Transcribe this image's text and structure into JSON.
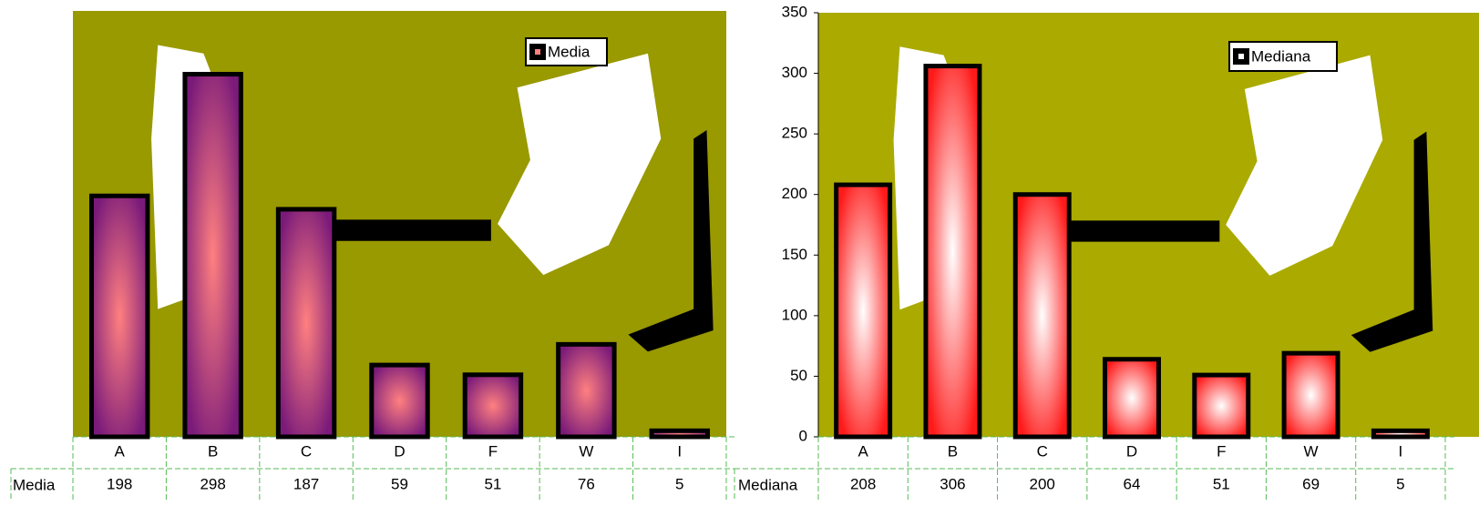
{
  "chart_data": [
    {
      "type": "bar",
      "categories": [
        "A",
        "B",
        "C",
        "D",
        "F",
        "W",
        "I"
      ],
      "series": [
        {
          "name": "Media",
          "color": "#7a1a7a",
          "center_color": "#ff8080",
          "values": [
            198,
            298,
            187,
            59,
            51,
            76,
            5
          ]
        }
      ],
      "ylim": [
        0,
        350
      ],
      "legend": "top-right",
      "background": "#999900"
    },
    {
      "type": "bar",
      "categories": [
        "A",
        "B",
        "C",
        "D",
        "F",
        "W",
        "I"
      ],
      "series": [
        {
          "name": "Mediana",
          "color": "#ff1a1a",
          "center_color": "#ffffff",
          "values": [
            208,
            306,
            200,
            64,
            51,
            69,
            5
          ]
        }
      ],
      "ylim": [
        0,
        350
      ],
      "yticks": [
        0,
        50,
        100,
        150,
        200,
        250,
        300,
        350
      ],
      "legend": "top-right",
      "background": "#aaaa00"
    }
  ]
}
